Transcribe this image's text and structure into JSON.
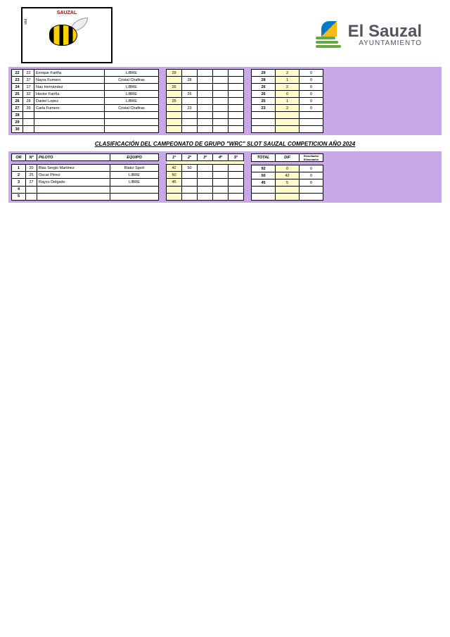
{
  "header": {
    "left_logo_top": "SAUZAL",
    "left_logo_slot": "slot",
    "right_title": "El Sauzal",
    "right_subtitle": "AYUNTAMIENTO"
  },
  "colors": {
    "purple_bg": "#c8a8e8",
    "yellow": "#fffcc9",
    "blue": "#0078c8",
    "orange": "#fdb813",
    "green": "#6aa842",
    "gray_text": "#505560"
  },
  "table1": {
    "rows": [
      {
        "pos": "22",
        "num": "22",
        "piloto": "Enrique Fariña",
        "equipo": "LIBRE",
        "r1": "29",
        "r2": "",
        "r3": "",
        "r4": "",
        "r5": "",
        "total": "29",
        "dif": "2",
        "elim": "0"
      },
      {
        "pos": "23",
        "num": "37",
        "piloto": "Nayra Fumero",
        "equipo": "Cristal Chafiras",
        "r1": "",
        "r2": "28",
        "r3": "",
        "r4": "",
        "r5": "",
        "total": "28",
        "dif": "1",
        "elim": "0"
      },
      {
        "pos": "24",
        "num": "17",
        "piloto": "Nau Hernández",
        "equipo": "LIBRE",
        "r1": "26",
        "r2": "",
        "r3": "",
        "r4": "",
        "r5": "",
        "total": "26",
        "dif": "2",
        "elim": "0"
      },
      {
        "pos": "25",
        "num": "32",
        "piloto": "Hector Fariña",
        "equipo": "LIBRE",
        "r1": "",
        "r2": "26",
        "r3": "",
        "r4": "",
        "r5": "",
        "total": "26",
        "dif": "0",
        "elim": "0"
      },
      {
        "pos": "26",
        "num": "28",
        "piloto": "Daniel Lopez",
        "equipo": "LIBRE",
        "r1": "25",
        "r2": "",
        "r3": "",
        "r4": "",
        "r5": "",
        "total": "25",
        "dif": "1",
        "elim": "0"
      },
      {
        "pos": "27",
        "num": "39",
        "piloto": "Carla Fumero",
        "equipo": "Cristal Chafiras",
        "r1": "",
        "r2": "23",
        "r3": "",
        "r4": "",
        "r5": "",
        "total": "23",
        "dif": "2",
        "elim": "0"
      },
      {
        "pos": "28",
        "num": "",
        "piloto": "",
        "equipo": "",
        "r1": "",
        "r2": "",
        "r3": "",
        "r4": "",
        "r5": "",
        "total": "",
        "dif": "",
        "elim": ""
      },
      {
        "pos": "29",
        "num": "",
        "piloto": "",
        "equipo": "",
        "r1": "",
        "r2": "",
        "r3": "",
        "r4": "",
        "r5": "",
        "total": "",
        "dif": "",
        "elim": ""
      },
      {
        "pos": "30",
        "num": "",
        "piloto": "",
        "equipo": "",
        "r1": "",
        "r2": "",
        "r3": "",
        "r4": "",
        "r5": "",
        "total": "",
        "dif": "",
        "elim": ""
      }
    ]
  },
  "section2": {
    "title": "CLASIFICACIÓN DEL CAMPEONATO DE GRUPO \"WRC\" SLOT SAUZAL COMPETICION  AÑO 2024",
    "headers": {
      "or": "OR",
      "num": "Nº",
      "piloto": "PILOTO",
      "equipo": "EQUIPO",
      "r1": "1ª",
      "r2": "2ª",
      "r3": "3ª",
      "r4": "4ª",
      "r5": "5ª",
      "total": "TOTAL",
      "dif": "DIF",
      "elim": "Resultados Eliminados"
    },
    "rows": [
      {
        "or": "1",
        "num": "20",
        "piloto": "Blas Sergio Martinez",
        "equipo": "Blako Sport",
        "r1": "42",
        "r2": "50",
        "r3": "",
        "r4": "",
        "r5": "",
        "total": "92",
        "dif": "0",
        "elim": "0"
      },
      {
        "or": "2",
        "num": "25",
        "piloto": "Oscar Pérez",
        "equipo": "LIBRE",
        "r1": "50",
        "r2": "",
        "r3": "",
        "r4": "",
        "r5": "",
        "total": "50",
        "dif": "42",
        "elim": "0"
      },
      {
        "or": "3",
        "num": "27",
        "piloto": "Rayco Delgado",
        "equipo": "LIBRE",
        "r1": "45",
        "r2": "",
        "r3": "",
        "r4": "",
        "r5": "",
        "total": "45",
        "dif": "5",
        "elim": "0"
      },
      {
        "or": "4",
        "num": "",
        "piloto": "",
        "equipo": "",
        "r1": "",
        "r2": "",
        "r3": "",
        "r4": "",
        "r5": "",
        "total": "",
        "dif": "",
        "elim": ""
      },
      {
        "or": "5",
        "num": "",
        "piloto": "",
        "equipo": "",
        "r1": "",
        "r2": "",
        "r3": "",
        "r4": "",
        "r5": "",
        "total": "",
        "dif": "",
        "elim": ""
      }
    ]
  }
}
